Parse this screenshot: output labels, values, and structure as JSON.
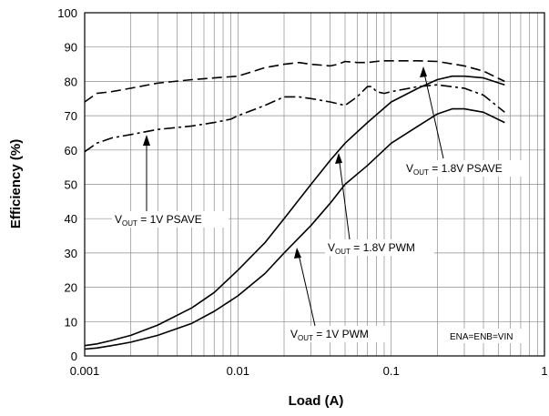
{
  "chart_data": {
    "type": "line",
    "title": "",
    "xlabel": "Load (A)",
    "ylabel": "Efficiency (%)",
    "x_scale": "log",
    "xlim": [
      0.001,
      1
    ],
    "ylim": [
      0,
      100
    ],
    "x_ticks": [
      0.001,
      0.01,
      0.1,
      1
    ],
    "x_tick_labels": [
      "0.001",
      "0.01",
      "0.1",
      "1"
    ],
    "y_ticks": [
      0,
      10,
      20,
      30,
      40,
      50,
      60,
      70,
      80,
      90,
      100
    ],
    "y_tick_labels": [
      "0",
      "10",
      "20",
      "30",
      "40",
      "50",
      "60",
      "70",
      "80",
      "90",
      "100"
    ],
    "grid": true,
    "note": "ENA=ENB=VIN",
    "series": [
      {
        "style": "dashed",
        "x": [
          0.001,
          0.0012,
          0.0015,
          0.002,
          0.003,
          0.005,
          0.007,
          0.01,
          0.015,
          0.02,
          0.025,
          0.03,
          0.04,
          0.045,
          0.05,
          0.06,
          0.07,
          0.08,
          0.09,
          0.1,
          0.15,
          0.2,
          0.3,
          0.4,
          0.55
        ],
        "y": [
          74,
          76.5,
          77,
          78,
          79.5,
          80.5,
          81,
          81.5,
          84,
          85,
          85.5,
          85,
          84.5,
          85,
          85.8,
          85.5,
          85.5,
          85.8,
          86,
          86,
          86,
          85.8,
          84.5,
          83,
          80
        ]
      },
      {
        "style": "dash-dot",
        "x": [
          0.001,
          0.0012,
          0.0015,
          0.002,
          0.003,
          0.005,
          0.007,
          0.009,
          0.01,
          0.015,
          0.02,
          0.025,
          0.03,
          0.04,
          0.05,
          0.06,
          0.07,
          0.075,
          0.08,
          0.09,
          0.1,
          0.15,
          0.2,
          0.3,
          0.4,
          0.55
        ],
        "y": [
          59.5,
          62,
          63.5,
          64.5,
          66,
          67,
          68,
          69,
          70,
          73,
          75.5,
          75.5,
          75,
          74,
          73,
          75.5,
          78.5,
          78.5,
          77,
          76.5,
          77,
          78.5,
          79,
          78,
          76,
          71
        ]
      },
      {
        "style": "solid",
        "x": [
          0.001,
          0.0012,
          0.0015,
          0.002,
          0.003,
          0.005,
          0.007,
          0.01,
          0.015,
          0.02,
          0.03,
          0.04,
          0.05,
          0.07,
          0.1,
          0.15,
          0.2,
          0.25,
          0.3,
          0.4,
          0.55
        ],
        "y": [
          3,
          3.5,
          4.5,
          6,
          9,
          14,
          18.5,
          25,
          33,
          40,
          50,
          57,
          62,
          68,
          74,
          78,
          80.5,
          81.5,
          81.5,
          81,
          79
        ]
      },
      {
        "style": "solid",
        "x": [
          0.001,
          0.0012,
          0.0015,
          0.002,
          0.003,
          0.005,
          0.007,
          0.01,
          0.015,
          0.02,
          0.03,
          0.04,
          0.05,
          0.07,
          0.1,
          0.15,
          0.2,
          0.25,
          0.3,
          0.4,
          0.55
        ],
        "y": [
          2,
          2.3,
          3,
          4,
          6,
          9.5,
          13,
          17.5,
          24,
          30,
          38,
          44.5,
          50,
          55.5,
          62,
          67,
          70.5,
          72,
          72,
          71,
          68
        ]
      }
    ],
    "annotations": [
      {
        "main": "V",
        "sub": "OUT",
        "rest": " = 1.8V PSAVE"
      },
      {
        "main": "V",
        "sub": "OUT",
        "rest": " = 1V PSAVE"
      },
      {
        "main": "V",
        "sub": "OUT",
        "rest": " = 1.8V PWM"
      },
      {
        "main": "V",
        "sub": "OUT",
        "rest": " = 1V PWM"
      }
    ]
  }
}
